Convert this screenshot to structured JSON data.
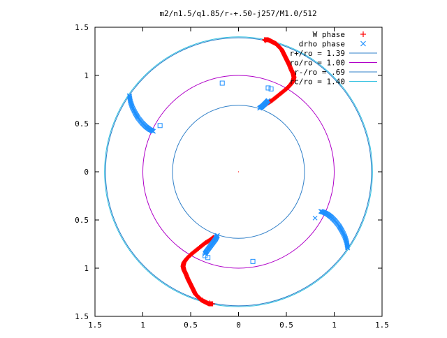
{
  "chart_data": {
    "type": "scatter",
    "title": "m2/n1.5/q1.85/r-+.50-j257/M1.0/512",
    "xlabel": "",
    "ylabel": "",
    "xlim": [
      -1.5,
      1.5
    ],
    "ylim": [
      -1.5,
      1.5
    ],
    "x_ticks": [
      -1.5,
      -1,
      -0.5,
      0,
      0.5,
      1,
      1.5
    ],
    "x_tick_labels": [
      "1.5",
      "1",
      "0.5",
      "0",
      "0.5",
      "1",
      "1.5"
    ],
    "y_ticks": [
      1.5,
      1,
      0.5,
      0,
      -0.5,
      -1,
      -1.5
    ],
    "y_tick_labels": [
      "1.5",
      "1",
      "0.5",
      "0",
      "0.5",
      "1",
      "1.5"
    ],
    "grid": false,
    "legend_position": "top-right",
    "colors": {
      "w_phase": "#ff0000",
      "drho_phase": "#1e90ff",
      "r_plus": "#2f7fc8",
      "r_o": "#b000c8",
      "r_minus": "#2f7fc8",
      "r_lo": "#30c0e0"
    },
    "circles": [
      {
        "name": "r+/ro = 1.39",
        "radius": 1.39,
        "color_key": "r_plus"
      },
      {
        "name": "ro/ro = 1.00",
        "radius": 1.0,
        "color_key": "r_o"
      },
      {
        "name": "r-/ro = .69",
        "radius": 0.69,
        "color_key": "r_minus"
      },
      {
        "name": "rc/ro = 1.40",
        "radius": 1.4,
        "color_key": "r_lo"
      }
    ],
    "legend": [
      {
        "label": "W phase",
        "marker": "plus",
        "color_key": "w_phase"
      },
      {
        "label": "drho phase",
        "marker": "cross",
        "color_key": "drho_phase"
      },
      {
        "label": "r+/ro = 1.39",
        "marker": "line",
        "color_key": "r_plus"
      },
      {
        "label": "ro/ro = 1.00",
        "marker": "line",
        "color_key": "r_o"
      },
      {
        "label": "r-/ro = .69",
        "marker": "line",
        "color_key": "r_minus"
      },
      {
        "label": "rc/ro = 1.40",
        "marker": "line",
        "color_key": "r_lo"
      }
    ],
    "series": [
      {
        "name": "W phase",
        "marker": "plus",
        "color_key": "w_phase",
        "arms": [
          {
            "points": [
              [
                0.27,
                1.37
              ],
              [
                0.31,
                1.37
              ],
              [
                0.35,
                1.35
              ],
              [
                0.39,
                1.33
              ],
              [
                0.42,
                1.3
              ],
              [
                0.45,
                1.27
              ],
              [
                0.47,
                1.23
              ],
              [
                0.49,
                1.19
              ],
              [
                0.51,
                1.15
              ],
              [
                0.53,
                1.11
              ],
              [
                0.55,
                1.06
              ],
              [
                0.57,
                1.02
              ],
              [
                0.58,
                0.98
              ],
              [
                0.57,
                0.94
              ],
              [
                0.54,
                0.9
              ],
              [
                0.5,
                0.86
              ],
              [
                0.45,
                0.82
              ],
              [
                0.4,
                0.78
              ],
              [
                0.35,
                0.74
              ],
              [
                0.3,
                0.71
              ],
              [
                0.26,
                0.68
              ]
            ],
            "dense": true
          },
          {
            "points": [
              [
                -0.27,
                -1.37
              ],
              [
                -0.31,
                -1.37
              ],
              [
                -0.35,
                -1.35
              ],
              [
                -0.39,
                -1.33
              ],
              [
                -0.42,
                -1.3
              ],
              [
                -0.45,
                -1.27
              ],
              [
                -0.47,
                -1.23
              ],
              [
                -0.49,
                -1.19
              ],
              [
                -0.51,
                -1.15
              ],
              [
                -0.53,
                -1.11
              ],
              [
                -0.55,
                -1.06
              ],
              [
                -0.57,
                -1.02
              ],
              [
                -0.58,
                -0.98
              ],
              [
                -0.57,
                -0.94
              ],
              [
                -0.54,
                -0.9
              ],
              [
                -0.5,
                -0.86
              ],
              [
                -0.45,
                -0.82
              ],
              [
                -0.4,
                -0.78
              ],
              [
                -0.35,
                -0.74
              ],
              [
                -0.3,
                -0.71
              ],
              [
                -0.26,
                -0.68
              ]
            ],
            "dense": true
          }
        ],
        "isolated": [
          [
            -0.38,
            -1.33
          ],
          [
            -0.3,
            -1.36
          ],
          [
            0.28,
            1.36
          ],
          [
            0.33,
            1.36
          ]
        ]
      },
      {
        "name": "drho phase",
        "marker": "cross",
        "color_key": "drho_phase",
        "arms": [
          {
            "points": [
              [
                -1.14,
                0.79
              ],
              [
                -1.13,
                0.73
              ],
              [
                -1.11,
                0.67
              ],
              [
                -1.08,
                0.61
              ],
              [
                -1.05,
                0.56
              ],
              [
                -1.01,
                0.51
              ],
              [
                -0.97,
                0.47
              ],
              [
                -0.93,
                0.44
              ],
              [
                -0.89,
                0.42
              ]
            ],
            "dense": true
          },
          {
            "points": [
              [
                1.14,
                -0.79
              ],
              [
                1.13,
                -0.73
              ],
              [
                1.11,
                -0.67
              ],
              [
                1.08,
                -0.61
              ],
              [
                1.05,
                -0.56
              ],
              [
                1.01,
                -0.51
              ],
              [
                0.97,
                -0.47
              ],
              [
                0.93,
                -0.44
              ],
              [
                0.89,
                -0.42
              ],
              [
                0.86,
                -0.41
              ]
            ],
            "dense": true
          },
          {
            "points": [
              [
                0.22,
                0.66
              ],
              [
                0.25,
                0.68
              ],
              [
                0.28,
                0.71
              ],
              [
                0.31,
                0.74
              ]
            ],
            "dense": true
          },
          {
            "points": [
              [
                -0.22,
                -0.66
              ],
              [
                -0.24,
                -0.7
              ],
              [
                -0.27,
                -0.74
              ],
              [
                -0.3,
                -0.78
              ],
              [
                -0.33,
                -0.82
              ],
              [
                -0.35,
                -0.85
              ]
            ],
            "dense": true
          }
        ],
        "isolated": [
          [
            -0.82,
            0.48
          ],
          [
            -0.17,
            0.92
          ],
          [
            0.31,
            0.87
          ],
          [
            0.34,
            0.86
          ],
          [
            0.8,
            -0.48
          ],
          [
            0.15,
            -0.93
          ],
          [
            -0.32,
            -0.89
          ],
          [
            -0.35,
            -0.87
          ]
        ]
      }
    ]
  }
}
